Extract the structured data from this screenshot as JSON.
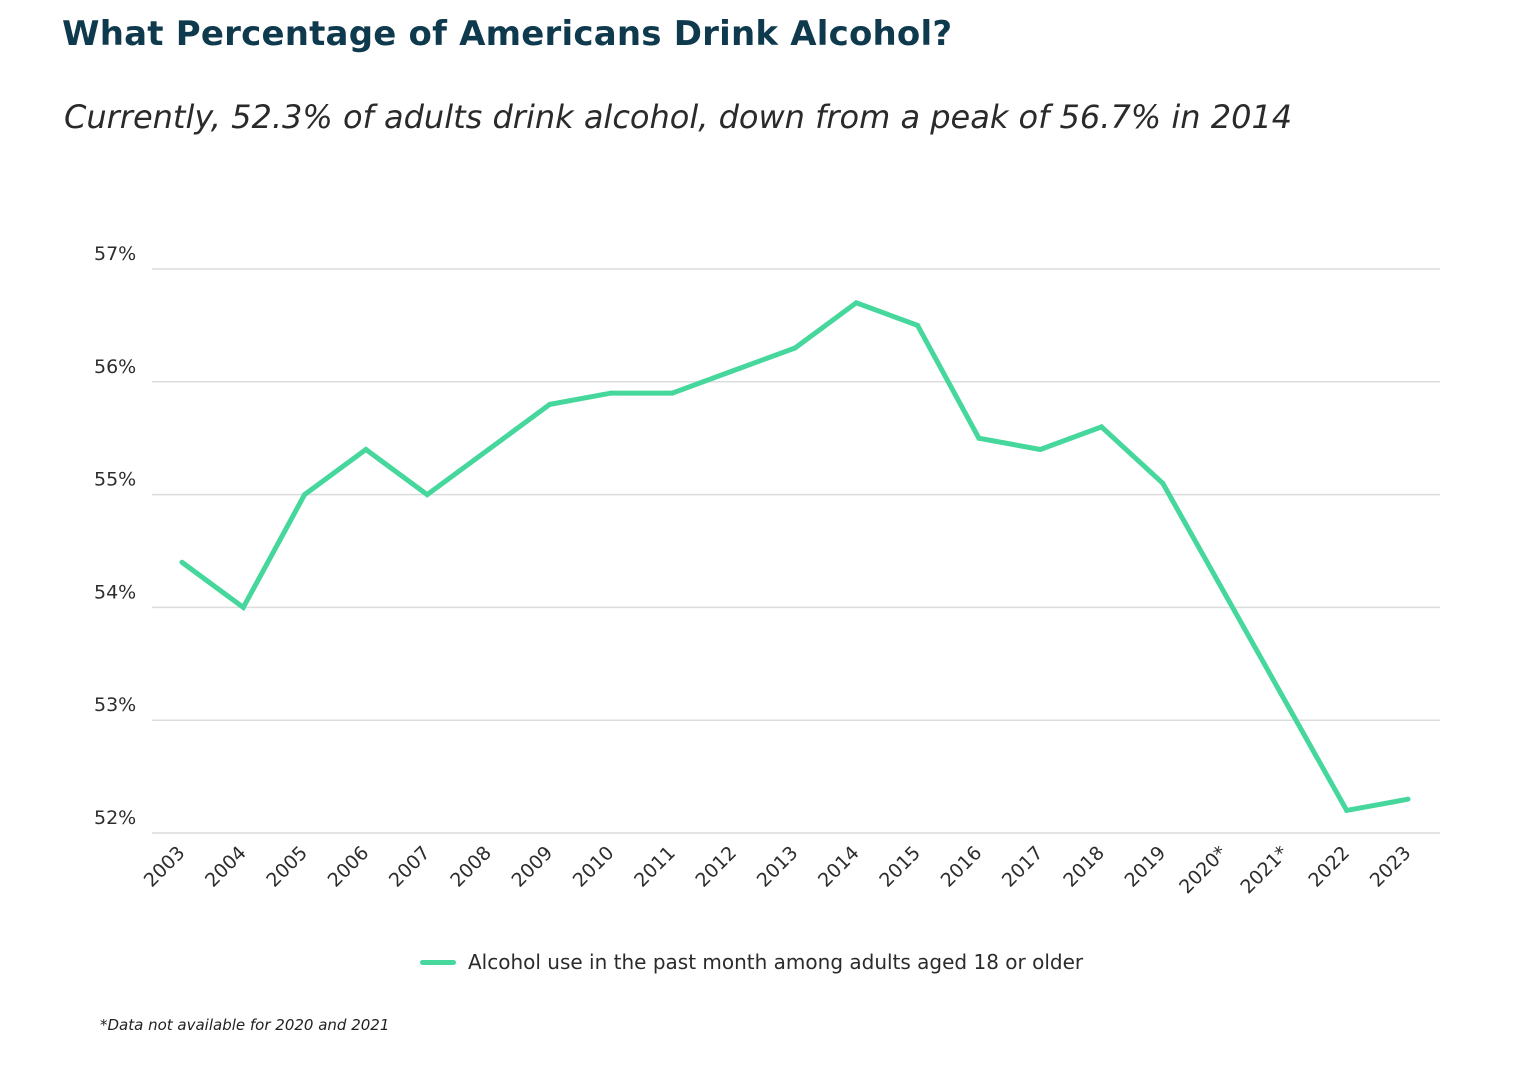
{
  "title": "What Percentage of Americans Drink Alcohol?",
  "subtitle": "Currently, 52.3% of adults drink alcohol, down from a peak of 56.7% in 2014",
  "footnote": "*Data not available for 2020 and 2021",
  "colors": {
    "line": "#45d79b",
    "grid": "#dcdcdc",
    "title": "#0f3a4d"
  },
  "chart_data": {
    "type": "line",
    "categories": [
      "2003",
      "2004",
      "2005",
      "2006",
      "2007",
      "2008",
      "2009",
      "2010",
      "2011",
      "2012",
      "2013",
      "2014",
      "2015",
      "2016",
      "2017",
      "2018",
      "2019",
      "2020*",
      "2021*",
      "2022",
      "2023"
    ],
    "series": [
      {
        "name": "Alcohol use in the past month among adults aged 18 or older",
        "values": [
          54.4,
          54.0,
          55.0,
          55.4,
          55.0,
          55.4,
          55.8,
          55.9,
          55.9,
          56.1,
          56.3,
          56.7,
          56.5,
          55.5,
          55.4,
          55.6,
          55.1,
          null,
          null,
          52.2,
          52.3
        ]
      }
    ],
    "y_ticks": [
      "57%",
      "56%",
      "55%",
      "54%",
      "53%",
      "52%"
    ],
    "ylim": [
      52,
      57
    ],
    "grid": true,
    "legend": "bottom-center"
  }
}
